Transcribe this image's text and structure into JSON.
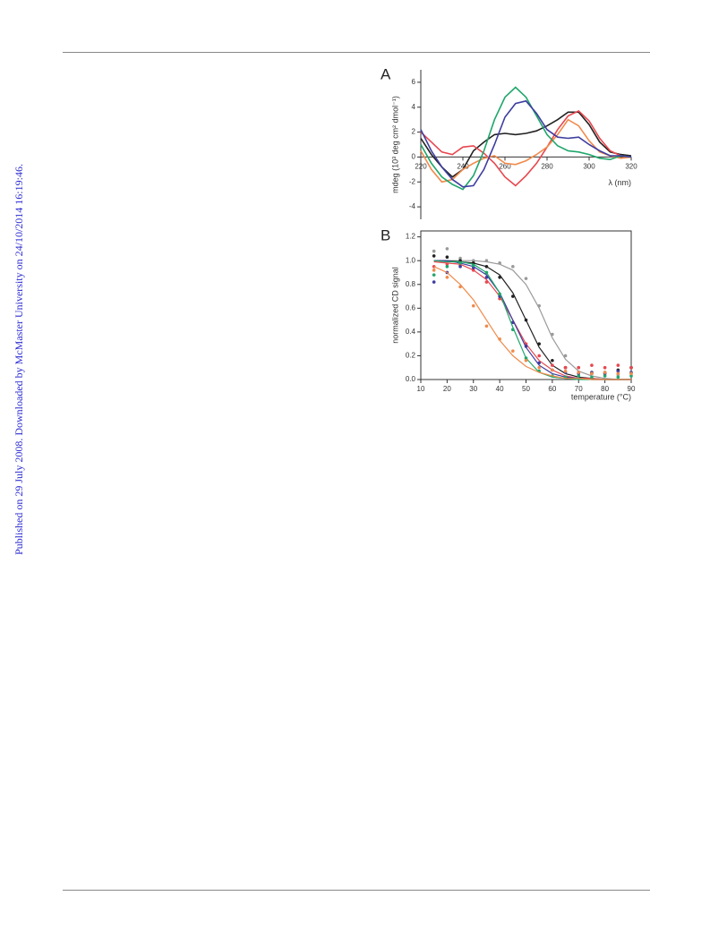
{
  "sidebar": "Published on 29 July 2008. Downloaded by McMaster University on 24/10/2014 16:19:46.",
  "chart_data": [
    {
      "type": "line",
      "panel": "A",
      "y_label": "mdeg (10³ deg cm² dmol⁻¹)",
      "x_label": "λ (nm)",
      "x": [
        220,
        225,
        230,
        235,
        240,
        245,
        250,
        255,
        260,
        265,
        270,
        275,
        280,
        285,
        290,
        295,
        300,
        305,
        310,
        315,
        320
      ],
      "xlim": [
        220,
        320
      ],
      "xticks": [
        220,
        240,
        260,
        280,
        300,
        320
      ],
      "ylim": [
        -5,
        7
      ],
      "yticks": [
        -4,
        -2,
        0,
        2,
        4,
        6
      ],
      "series": [
        {
          "color": "#222222",
          "values": [
            1.5,
            0.2,
            -0.8,
            -1.6,
            -1.0,
            0.5,
            1.2,
            1.8,
            1.9,
            1.8,
            1.9,
            2.1,
            2.5,
            3.0,
            3.6,
            3.6,
            2.6,
            1.2,
            0.4,
            0.2,
            0.1
          ]
        },
        {
          "color": "#e8474f",
          "values": [
            2.0,
            1.2,
            0.4,
            0.2,
            0.8,
            0.9,
            0.3,
            -0.5,
            -1.6,
            -2.3,
            -1.5,
            -0.5,
            0.8,
            2.2,
            3.3,
            3.7,
            2.9,
            1.5,
            0.5,
            0.1,
            0.0
          ]
        },
        {
          "color": "#f08a4b",
          "values": [
            0.5,
            -1.0,
            -2.0,
            -1.8,
            -1.0,
            -0.5,
            -0.1,
            0.1,
            -0.5,
            -0.6,
            -0.3,
            0.2,
            0.8,
            1.8,
            3.0,
            2.5,
            1.3,
            0.4,
            0.1,
            -0.1,
            0.0
          ]
        },
        {
          "color": "#1fa66b",
          "values": [
            1.0,
            -0.5,
            -1.6,
            -2.2,
            -2.6,
            -1.5,
            0.5,
            3.0,
            4.8,
            5.6,
            4.8,
            3.3,
            1.8,
            0.9,
            0.5,
            0.4,
            0.2,
            -0.1,
            -0.2,
            0.1,
            0.0
          ]
        },
        {
          "color": "#3d3da0",
          "values": [
            2.2,
            0.5,
            -0.8,
            -1.8,
            -2.4,
            -2.3,
            -1.0,
            1.0,
            3.2,
            4.3,
            4.5,
            3.5,
            2.2,
            1.6,
            1.5,
            1.6,
            1.0,
            0.5,
            0.1,
            0.1,
            0.0
          ]
        }
      ]
    },
    {
      "type": "scatter",
      "panel": "B",
      "y_label": "normalized CD signal",
      "x_label": "temperature (°C)",
      "x": [
        15,
        20,
        25,
        30,
        35,
        40,
        45,
        50,
        55,
        60,
        65,
        70,
        75,
        80,
        85,
        90
      ],
      "xlim": [
        10,
        90
      ],
      "xticks": [
        10,
        20,
        30,
        40,
        50,
        60,
        70,
        80,
        90
      ],
      "ylim": [
        0,
        1.25
      ],
      "yticks": [
        {
          "value": 0,
          "label": "0.0"
        },
        0.2,
        0.4,
        0.6,
        0.8,
        {
          "value": 1,
          "label": "1.0"
        },
        1.2
      ],
      "series": [
        {
          "color": "#9a9a9a",
          "values": [
            1.08,
            1.1,
            1.02,
            1.0,
            1.0,
            0.98,
            0.95,
            0.85,
            0.62,
            0.38,
            0.2,
            0.1,
            0.06,
            0.05,
            0.04,
            0.05
          ],
          "fit": [
            1.0,
            1.0,
            1.0,
            1.0,
            0.99,
            0.97,
            0.92,
            0.8,
            0.6,
            0.35,
            0.17,
            0.07,
            0.03,
            0.01,
            0.0,
            0.0
          ]
        },
        {
          "color": "#222222",
          "values": [
            1.04,
            1.03,
            1.0,
            0.98,
            0.95,
            0.86,
            0.7,
            0.5,
            0.3,
            0.16,
            0.1,
            0.06,
            0.05,
            0.06,
            0.08,
            0.1
          ],
          "fit": [
            1.0,
            1.0,
            0.99,
            0.98,
            0.95,
            0.88,
            0.73,
            0.5,
            0.27,
            0.12,
            0.05,
            0.02,
            0.01,
            0,
            0,
            0
          ]
        },
        {
          "color": "#e8474f",
          "values": [
            0.95,
            0.97,
            0.96,
            0.92,
            0.82,
            0.68,
            0.48,
            0.3,
            0.2,
            0.12,
            0.1,
            0.1,
            0.12,
            0.1,
            0.12,
            0.1
          ],
          "fit": [
            0.99,
            0.98,
            0.97,
            0.92,
            0.84,
            0.7,
            0.5,
            0.3,
            0.16,
            0.08,
            0.03,
            0.01,
            0.01,
            0,
            0,
            0
          ]
        },
        {
          "color": "#3d3da0",
          "values": [
            0.82,
            0.9,
            0.95,
            0.94,
            0.86,
            0.7,
            0.48,
            0.28,
            0.14,
            0.08,
            0.06,
            0.05,
            0.06,
            0.05,
            0.07,
            0.06
          ],
          "fit": [
            1.0,
            1.0,
            0.98,
            0.95,
            0.88,
            0.73,
            0.5,
            0.27,
            0.12,
            0.05,
            0.02,
            0.01,
            0,
            0,
            0,
            0
          ]
        },
        {
          "color": "#1fa66b",
          "values": [
            0.88,
            0.95,
            0.98,
            0.96,
            0.9,
            0.72,
            0.42,
            0.18,
            0.07,
            0.03,
            0.02,
            0.03,
            0.02,
            0.03,
            0.02,
            0.03
          ],
          "fit": [
            1.0,
            0.99,
            0.99,
            0.97,
            0.9,
            0.73,
            0.44,
            0.18,
            0.06,
            0.02,
            0.01,
            0,
            0,
            0,
            0,
            0
          ]
        },
        {
          "color": "#f08a4b",
          "values": [
            0.92,
            0.86,
            0.78,
            0.62,
            0.45,
            0.34,
            0.24,
            0.16,
            0.1,
            0.08,
            0.07,
            0.06,
            0.05,
            0.06,
            0.05,
            0.05
          ],
          "fit": [
            0.95,
            0.9,
            0.8,
            0.67,
            0.5,
            0.33,
            0.2,
            0.11,
            0.06,
            0.03,
            0.01,
            0.01,
            0,
            0,
            0,
            0
          ]
        }
      ]
    }
  ]
}
